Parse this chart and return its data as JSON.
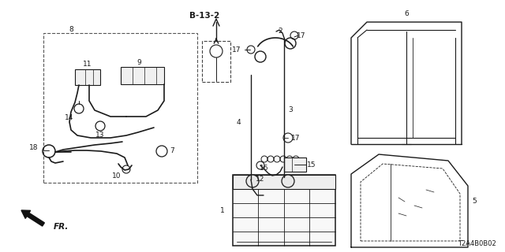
{
  "bg_color": "#ffffff",
  "line_color": "#1a1a1a",
  "diagram_code": "T2A4B0B02",
  "fig_w": 6.4,
  "fig_h": 3.2,
  "dpi": 100
}
